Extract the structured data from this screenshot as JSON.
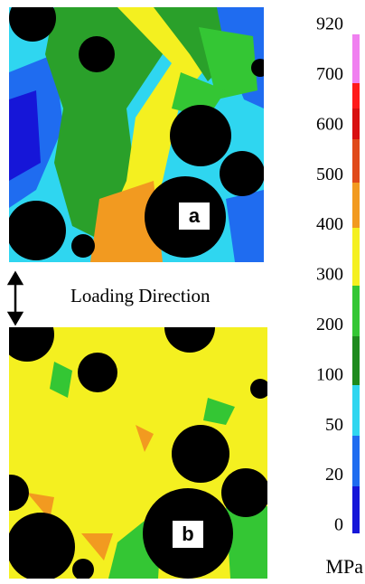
{
  "panels": [
    {
      "label": "a"
    },
    {
      "label": "b"
    }
  ],
  "annotation": "Loading Direction",
  "colorbar": {
    "ticks": [
      920,
      700,
      600,
      500,
      400,
      300,
      200,
      100,
      50,
      20,
      0
    ],
    "unit": "MPa"
  }
}
